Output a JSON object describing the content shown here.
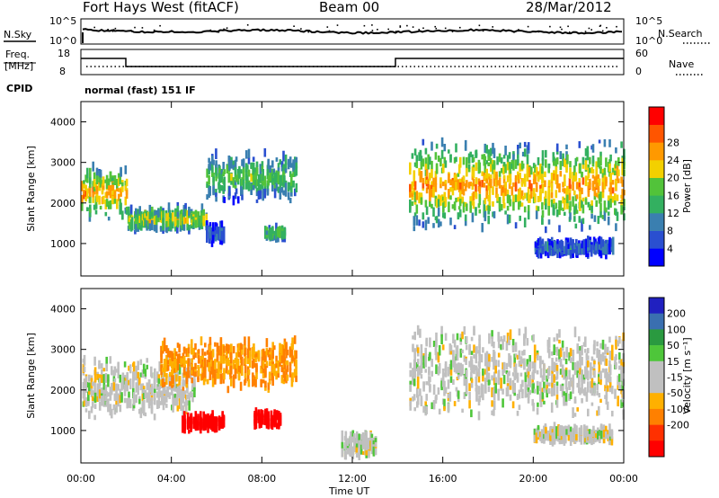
{
  "header": {
    "station": "Fort Hays West (fitACF)",
    "beam": "Beam 00",
    "date": "28/Mar/2012"
  },
  "noise_panel": {
    "left_label": "N.Sky",
    "right_label": "N.Search",
    "left_ticks": [
      "10^5",
      "10^0"
    ],
    "right_ticks": [
      "10^5",
      "10^0"
    ]
  },
  "freq_panel": {
    "left_label_line1": "Freq.",
    "left_label_line2": "[MHz]",
    "right_label": "Nave",
    "left_ticks": [
      "18",
      "8"
    ],
    "right_ticks": [
      "60",
      "0"
    ],
    "cpid_label": "CPID",
    "cpid_text": "normal (fast) 151 IF"
  },
  "colors": {
    "power_scale": [
      "#0000ff",
      "#2a4fd0",
      "#3a7fb0",
      "#33b060",
      "#52c33a",
      "#f3d000",
      "#ff9900",
      "#ff5500",
      "#ff0000"
    ],
    "velocity_scale": [
      "#2020c0",
      "#3a6fb0",
      "#2a9a40",
      "#4ec63a",
      "#c0c0c0",
      "#c0c0c0",
      "#ffb000",
      "#ff8000",
      "#ff3000",
      "#ff0000"
    ]
  },
  "chart_data": [
    {
      "type": "heatmap",
      "panel": "power",
      "ylabel": "Slant Range [km]",
      "yticks": [
        "1000",
        "2000",
        "3000",
        "4000"
      ],
      "ylim": [
        200,
        4500
      ],
      "xlim_hours": [
        0,
        24
      ],
      "colorbar": {
        "label": "Power [dB]",
        "ticks": [
          "4",
          "8",
          "12",
          "16",
          "20",
          "24",
          "28"
        ],
        "range": [
          0,
          32
        ]
      },
      "echo_regions": [
        {
          "start_hour": 0.0,
          "end_hour": 2.0,
          "range_low_km": 1500,
          "range_high_km": 2800,
          "peak_db": 24
        },
        {
          "start_hour": 2.0,
          "end_hour": 5.5,
          "range_low_km": 1200,
          "range_high_km": 1800,
          "peak_db": 20
        },
        {
          "start_hour": 5.5,
          "end_hour": 9.5,
          "range_low_km": 1900,
          "range_high_km": 3200,
          "peak_db": 16
        },
        {
          "start_hour": 5.5,
          "end_hour": 6.3,
          "range_low_km": 900,
          "range_high_km": 1400,
          "peak_db": 8
        },
        {
          "start_hour": 8.1,
          "end_hour": 9.0,
          "range_low_km": 1000,
          "range_high_km": 1300,
          "peak_db": 16
        },
        {
          "start_hour": 14.5,
          "end_hour": 24.0,
          "range_low_km": 1200,
          "range_high_km": 3500,
          "peak_db": 24
        },
        {
          "start_hour": 20.0,
          "end_hour": 23.5,
          "range_low_km": 600,
          "range_high_km": 1000,
          "peak_db": 8
        }
      ]
    },
    {
      "type": "heatmap",
      "panel": "velocity",
      "ylabel": "Slant Range [km]",
      "yticks": [
        "1000",
        "2000",
        "3000",
        "4000"
      ],
      "ylim": [
        200,
        4500
      ],
      "xlabel": "Time UT",
      "xticks": [
        "00:00",
        "04:00",
        "08:00",
        "12:00",
        "16:00",
        "20:00",
        "00:00"
      ],
      "xlim_hours": [
        0,
        24
      ],
      "colorbar": {
        "label": "Velocity [m s⁻¹]",
        "ticks": [
          "200",
          "100",
          "50",
          "15",
          "-15",
          "-50",
          "-100",
          "-200"
        ],
        "range": [
          -250,
          250
        ]
      },
      "echo_regions": [
        {
          "start_hour": 0.0,
          "end_hour": 5.0,
          "range_low_km": 1200,
          "range_high_km": 2700,
          "velocity_ms": 0
        },
        {
          "start_hour": 3.5,
          "end_hour": 9.5,
          "range_low_km": 1900,
          "range_high_km": 3200,
          "velocity_ms": -50
        },
        {
          "start_hour": 4.4,
          "end_hour": 6.3,
          "range_low_km": 900,
          "range_high_km": 1300,
          "velocity_ms": -220
        },
        {
          "start_hour": 7.6,
          "end_hour": 8.8,
          "range_low_km": 1000,
          "range_high_km": 1400,
          "velocity_ms": -220
        },
        {
          "start_hour": 11.5,
          "end_hour": 13.0,
          "range_low_km": 200,
          "range_high_km": 900,
          "velocity_ms": 0
        },
        {
          "start_hour": 14.5,
          "end_hour": 24.0,
          "range_low_km": 1200,
          "range_high_km": 3500,
          "velocity_ms": 0
        },
        {
          "start_hour": 20.0,
          "end_hour": 23.5,
          "range_low_km": 600,
          "range_high_km": 1000,
          "velocity_ms": 0
        }
      ]
    }
  ]
}
